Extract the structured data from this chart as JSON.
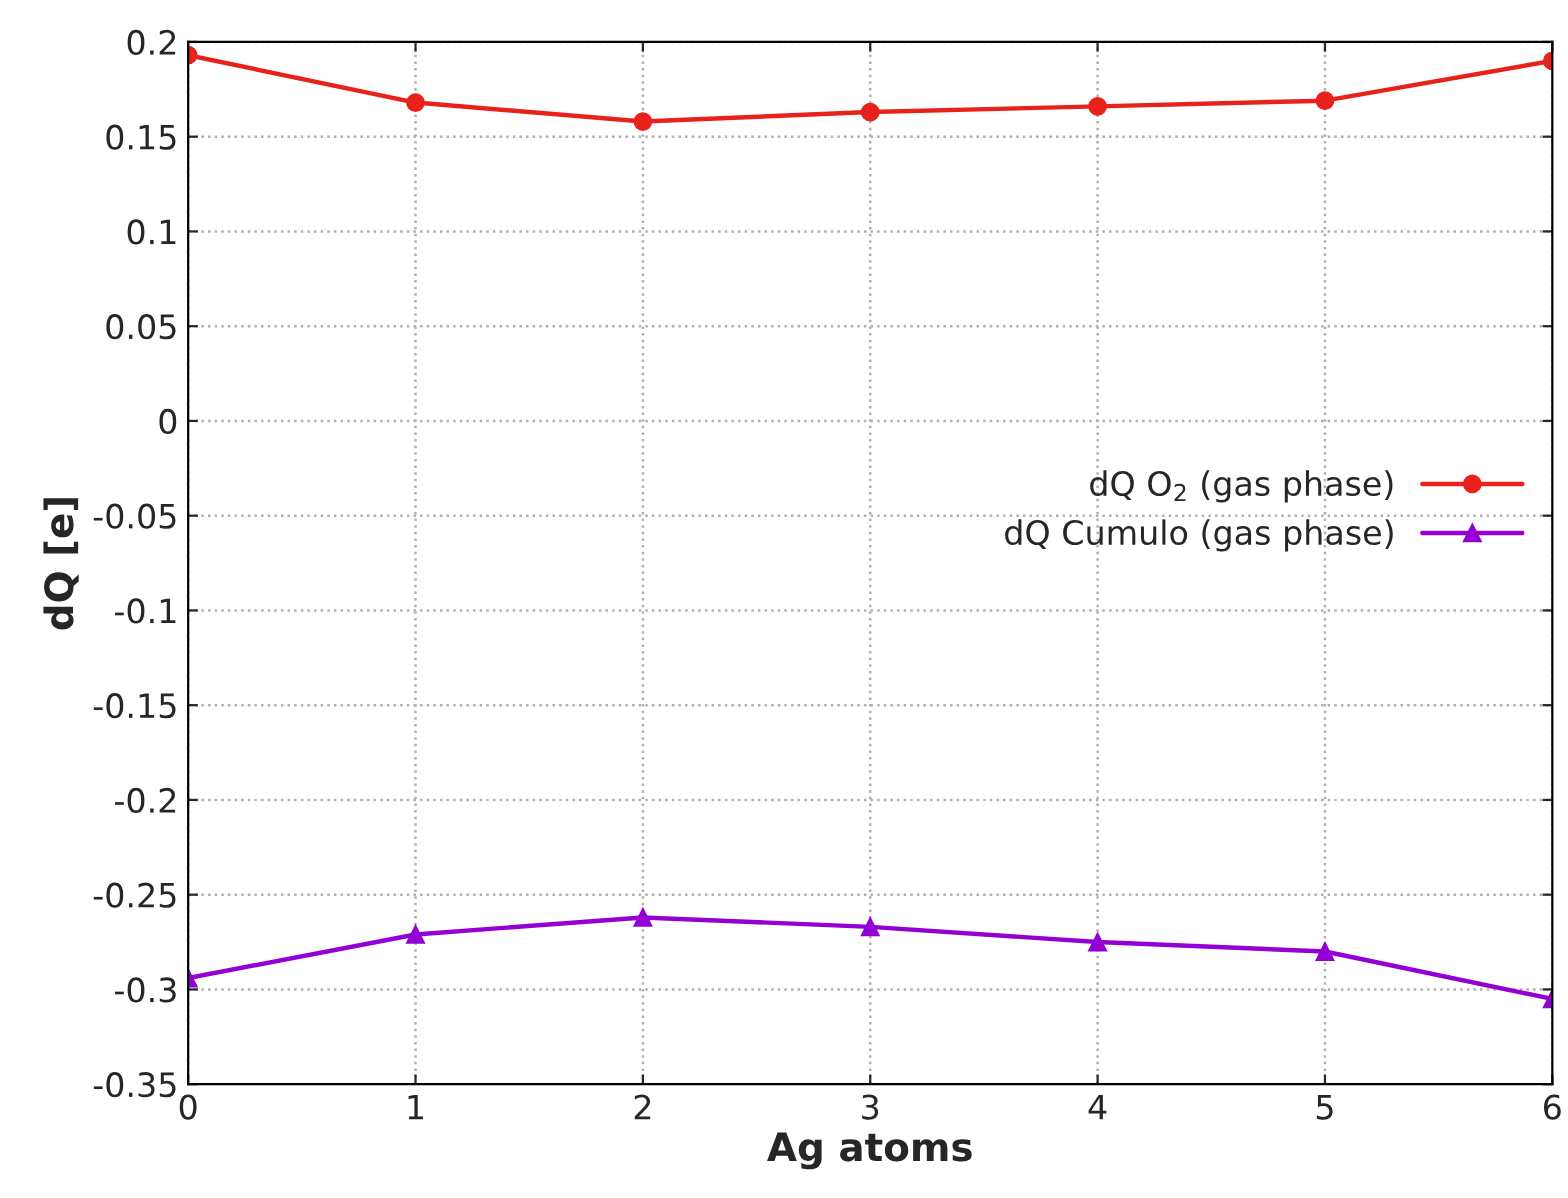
{
  "chart_data": {
    "type": "line",
    "xlabel": "Ag atoms",
    "ylabel": "dQ [e]",
    "x": [
      0,
      1,
      2,
      3,
      4,
      5,
      6
    ],
    "series": [
      {
        "name": "dQ O$_{2}$ (gas phase)",
        "color": "#e8221b",
        "marker": "circle",
        "values": [
          0.193,
          0.168,
          0.158,
          0.163,
          0.166,
          0.169,
          0.19
        ]
      },
      {
        "name": "dQ Cumulo (gas phase)",
        "color": "#9400d3",
        "marker": "triangle",
        "values": [
          -0.294,
          -0.271,
          -0.262,
          -0.267,
          -0.275,
          -0.28,
          -0.305
        ]
      }
    ],
    "xlim": [
      0,
      6
    ],
    "xticks": [
      0,
      1,
      2,
      3,
      4,
      5,
      6
    ],
    "ylim": [
      -0.35,
      0.2
    ],
    "yticks": [
      -0.35,
      -0.3,
      -0.25,
      -0.2,
      -0.15,
      -0.1,
      -0.05,
      0,
      0.05,
      0.1,
      0.15,
      0.2
    ],
    "grid": true,
    "legend": "right",
    "line_style": "solid"
  }
}
